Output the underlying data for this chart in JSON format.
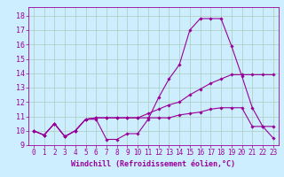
{
  "xlabel": "Windchill (Refroidissement éolien,°C)",
  "bg_color": "#cceeff",
  "line_color": "#990099",
  "grid_color": "#aaccbb",
  "series": [
    {
      "x": [
        0,
        1,
        2,
        3,
        4,
        5,
        6,
        7,
        8,
        9,
        10,
        11,
        12,
        13,
        14,
        15,
        16,
        17,
        18,
        19,
        20,
        21,
        22,
        23
      ],
      "y": [
        10.0,
        9.7,
        10.5,
        9.6,
        10.0,
        10.8,
        10.8,
        9.4,
        9.4,
        9.8,
        9.8,
        10.8,
        12.3,
        13.6,
        14.6,
        17.0,
        17.8,
        17.8,
        17.8,
        15.9,
        13.8,
        11.6,
        10.3,
        10.3
      ]
    },
    {
      "x": [
        0,
        1,
        2,
        3,
        4,
        5,
        6,
        7,
        8,
        9,
        10,
        11,
        12,
        13,
        14,
        15,
        16,
        17,
        18,
        19,
        20,
        21,
        22,
        23
      ],
      "y": [
        10.0,
        9.7,
        10.5,
        9.6,
        10.0,
        10.8,
        10.9,
        10.9,
        10.9,
        10.9,
        10.9,
        11.2,
        11.5,
        11.8,
        12.0,
        12.5,
        12.9,
        13.3,
        13.6,
        13.9,
        13.9,
        13.9,
        13.9,
        13.9
      ]
    },
    {
      "x": [
        0,
        1,
        2,
        3,
        4,
        5,
        6,
        7,
        8,
        9,
        10,
        11,
        12,
        13,
        14,
        15,
        16,
        17,
        18,
        19,
        20,
        21,
        22,
        23
      ],
      "y": [
        10.0,
        9.7,
        10.5,
        9.6,
        10.0,
        10.8,
        10.9,
        10.9,
        10.9,
        10.9,
        10.9,
        10.9,
        10.9,
        10.9,
        11.1,
        11.2,
        11.3,
        11.5,
        11.6,
        11.6,
        11.6,
        10.3,
        10.3,
        9.5
      ]
    }
  ],
  "xlim": [
    -0.5,
    23.5
  ],
  "ylim": [
    9.0,
    18.6
  ],
  "yticks": [
    9,
    10,
    11,
    12,
    13,
    14,
    15,
    16,
    17,
    18
  ],
  "xticks": [
    0,
    1,
    2,
    3,
    4,
    5,
    6,
    7,
    8,
    9,
    10,
    11,
    12,
    13,
    14,
    15,
    16,
    17,
    18,
    19,
    20,
    21,
    22,
    23
  ],
  "tick_fontsize": 5.5,
  "xlabel_fontsize": 6.0
}
